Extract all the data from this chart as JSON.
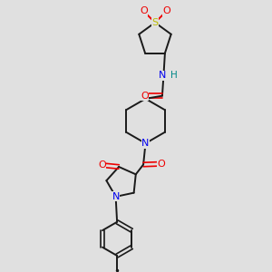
{
  "bg_color": "#e0e0e0",
  "atom_colors": {
    "C": "#1a1a1a",
    "N": "#0000ee",
    "O": "#ee0000",
    "S": "#bbbb00",
    "H": "#008888"
  },
  "bond_color": "#1a1a1a",
  "bond_lw": 1.4,
  "figsize": [
    3.0,
    3.0
  ],
  "dpi": 100,
  "xlim": [
    0,
    10
  ],
  "ylim": [
    0,
    10
  ]
}
